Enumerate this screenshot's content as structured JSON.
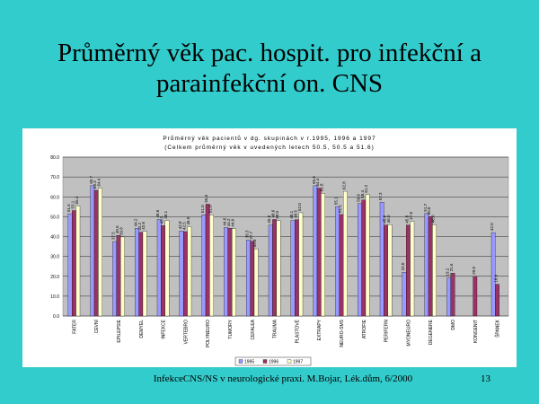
{
  "slide": {
    "title_line1": "Průměrný věk pac. hospit. pro infekční a",
    "title_line2": "parainfekční on. CNS",
    "footer": "InfekceCNS/NS v neurologické praxi. M.Bojar, Lék.dům, 6/2000",
    "page_number": "13"
  },
  "colors": {
    "background": "#33cccc",
    "plot_background": "#c0c0c0",
    "series": [
      "#9999ff",
      "#993366",
      "#ffffcc"
    ]
  },
  "chart_data": {
    "type": "bar",
    "title": "Průměrný věk pacientů v dg. skupinách v r.1995, 1996 a 1997",
    "subtitle": "(Celkem průměrný věk v uvedených letech 50.5, 50.5 a 51.6)",
    "ylim": [
      0,
      80
    ],
    "yticks": [
      "0.0",
      "10.0",
      "20.0",
      "30.0",
      "40.0",
      "50.0",
      "60.0",
      "70.0",
      "80.0"
    ],
    "grid": true,
    "legend_position": "bottom",
    "categories": [
      "FATER",
      "CEVNÍ",
      "EPILEPSIE",
      "DEMYEL",
      "INFEKCE",
      "VERTEBRO",
      "POLYNEURO",
      "TUMORY",
      "CEFALEA",
      "TRAUMA",
      "PLASTOVÉ",
      "EXTRAPY",
      "NEURO-SMS",
      "ATROFIE",
      "PERIFERN",
      "MYONEURO",
      "DEGENERE",
      "DMO",
      "KONGENIT",
      "ŠPANEK"
    ],
    "series": [
      {
        "name": "1995",
        "values": [
          51.5,
          65.7,
          37.5,
          44.2,
          48.6,
          42.8,
          51.0,
          44.6,
          38.3,
          45.8,
          48.1,
          65.6,
          55.1,
          56.6,
          57.3,
          22.0,
          51.7,
          19.2,
          null,
          42.0
        ]
      },
      {
        "name": "1996",
        "values": [
          53.1,
          63.3,
          40.6,
          42.2,
          45.5,
          42.5,
          56.3,
          44.2,
          37.7,
          48.6,
          48.5,
          64.4,
          51.1,
          58.4,
          45.8,
          45.8,
          50.0,
          21.6,
          20.0,
          16.0
        ]
      },
      {
        "name": "1997",
        "values": [
          55.4,
          64.4,
          39.8,
          42.6,
          48.1,
          45.0,
          51.0,
          44.0,
          33.8,
          48.0,
          52.0,
          61.8,
          62.8,
          61.2,
          46.0,
          47.6,
          46.0,
          null,
          null,
          null
        ]
      }
    ]
  }
}
